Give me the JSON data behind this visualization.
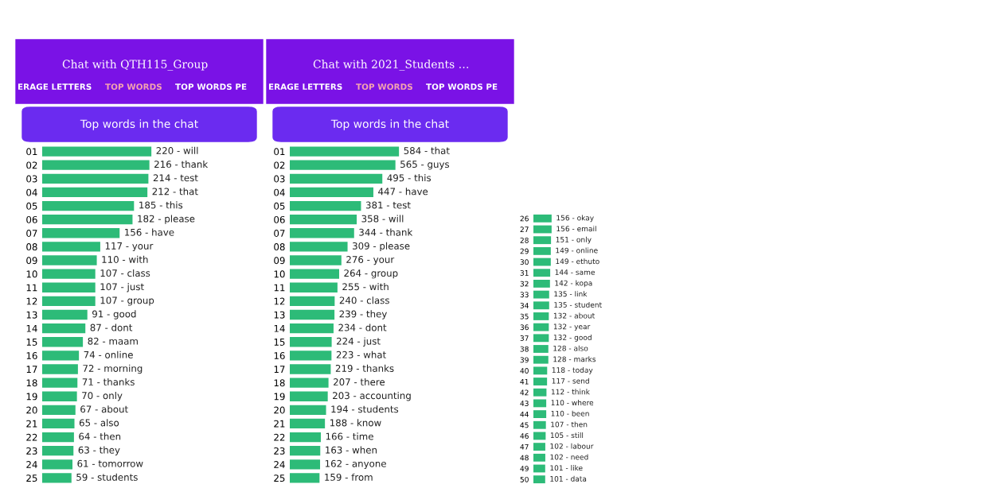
{
  "chart_data": [
    {
      "type": "bar",
      "orientation": "horizontal",
      "title": "Top words in the chat",
      "subtitle": "Chat with QTH115_Group",
      "annotations": [
        "ERAGE LETTERS",
        "TOP WORDS",
        "TOP WORDS PE"
      ],
      "color": "#2dbb78",
      "categories": [
        "01",
        "02",
        "03",
        "04",
        "05",
        "06",
        "07",
        "08",
        "09",
        "10",
        "11",
        "12",
        "13",
        "14",
        "15",
        "16",
        "17",
        "18",
        "19",
        "20",
        "21",
        "22",
        "23",
        "24",
        "25"
      ],
      "values": [
        220,
        216,
        214,
        212,
        185,
        182,
        156,
        117,
        110,
        107,
        107,
        107,
        91,
        87,
        82,
        74,
        72,
        71,
        70,
        67,
        65,
        64,
        63,
        61,
        59
      ],
      "value_labels": [
        "220 - will",
        "216 - thank",
        "214 - test",
        "212 - that",
        "185 - this",
        "182 - please",
        "156 - have",
        "117 - your",
        "110 - with",
        "107 - class",
        "107 - just",
        "107 - group",
        "91 - good",
        "87 - dont",
        "82 - maam",
        "74 - online",
        "72 - morning",
        "71 - thanks",
        "70 - only",
        "67 - about",
        "65 - also",
        "64 - then",
        "63 - they",
        "61 - tomorrow",
        "59 - students"
      ]
    },
    {
      "type": "bar",
      "orientation": "horizontal",
      "title": "Top words in the chat",
      "subtitle": "Chat with 2021_Students …",
      "annotations": [
        "ERAGE LETTERS",
        "TOP WORDS",
        "TOP WORDS PE"
      ],
      "color": "#2dbb78",
      "categories": [
        "01",
        "02",
        "03",
        "04",
        "05",
        "06",
        "07",
        "08",
        "09",
        "10",
        "11",
        "12",
        "13",
        "14",
        "15",
        "16",
        "17",
        "18",
        "19",
        "20",
        "21",
        "22",
        "23",
        "24",
        "25"
      ],
      "values": [
        584,
        565,
        495,
        447,
        381,
        358,
        344,
        309,
        276,
        264,
        255,
        240,
        239,
        234,
        224,
        223,
        219,
        207,
        203,
        194,
        188,
        166,
        163,
        162,
        159
      ],
      "value_labels": [
        "584 - that",
        "565 - guys",
        "495 - this",
        "447 - have",
        "381 - test",
        "358 - will",
        "344 - thank",
        "309 - please",
        "276 - your",
        "264 - group",
        "255 - with",
        "240 - class",
        "239 - they",
        "234 - dont",
        "224 - just",
        "223 - what",
        "219 - thanks",
        "207 - there",
        "203 - accounting",
        "194 - students",
        "188 - know",
        "166 - time",
        "163 - when",
        "162 - anyone",
        "159 - from"
      ]
    },
    {
      "type": "bar",
      "orientation": "horizontal",
      "color": "#2dbb78",
      "categories": [
        "26",
        "27",
        "28",
        "29",
        "30",
        "31",
        "32",
        "33",
        "34",
        "35",
        "36",
        "37",
        "38",
        "39",
        "40",
        "41",
        "42",
        "43",
        "44",
        "45",
        "46",
        "47",
        "48",
        "49",
        "50"
      ],
      "values": [
        156,
        156,
        151,
        149,
        149,
        144,
        142,
        135,
        135,
        132,
        132,
        132,
        128,
        128,
        118,
        117,
        112,
        110,
        110,
        107,
        105,
        102,
        102,
        101,
        101
      ],
      "value_labels": [
        "156 - okay",
        "156 - email",
        "151 - only",
        "149 - online",
        "149 - ethuto",
        "144 - same",
        "142 - kopa",
        "135 - link",
        "135 - student",
        "132 - about",
        "132 - year",
        "132 - good",
        "128 - also",
        "128 - marks",
        "118 - today",
        "117 - send",
        "112 - think",
        "110 - where",
        "110 - been",
        "107 - then",
        "105 - still",
        "102 - labour",
        "102 - need",
        "101 - like",
        "101 - data"
      ]
    }
  ]
}
